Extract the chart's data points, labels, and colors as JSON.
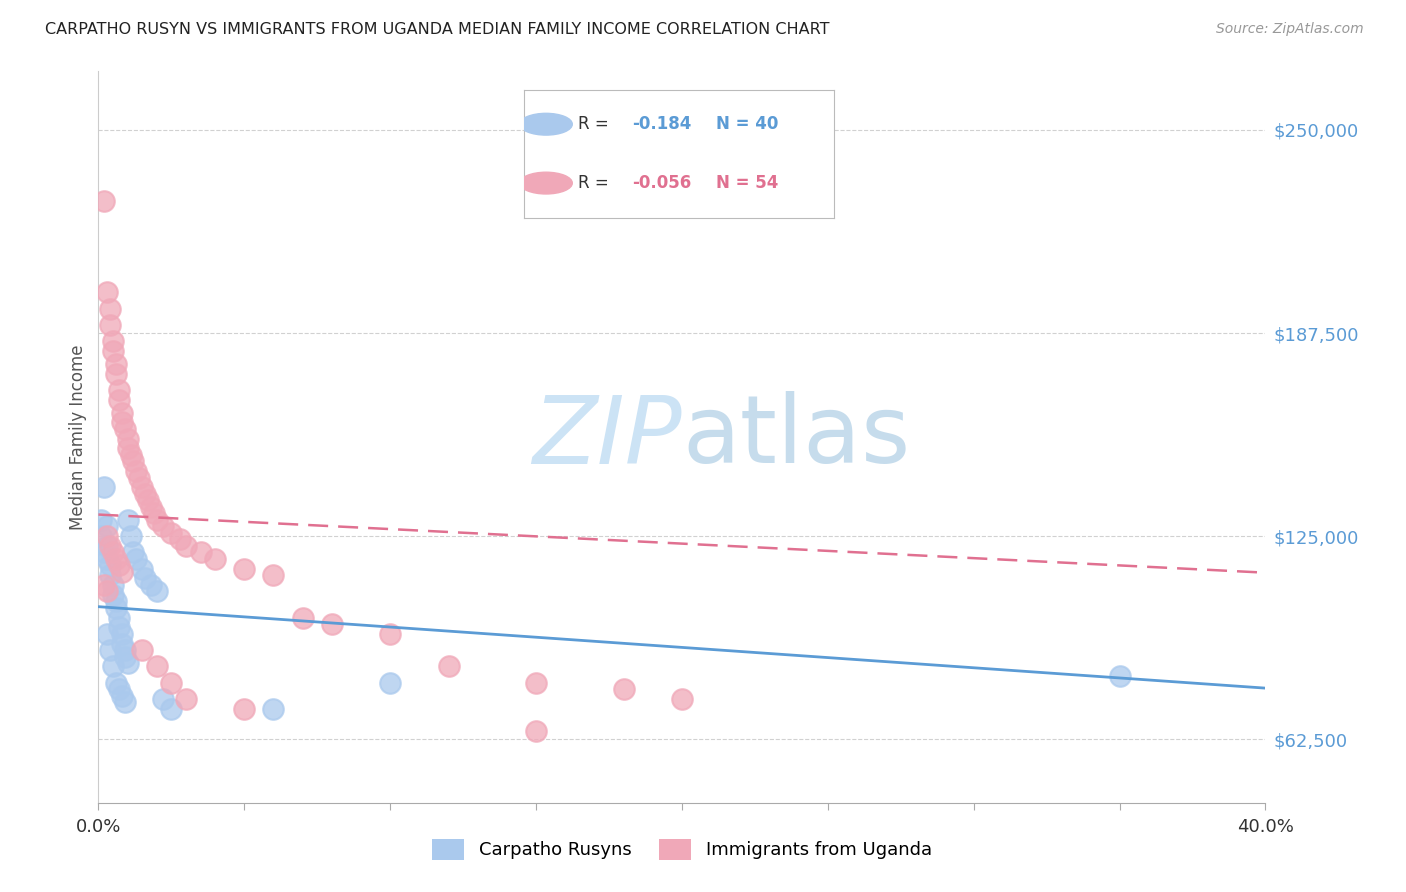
{
  "title": "CARPATHO RUSYN VS IMMIGRANTS FROM UGANDA MEDIAN FAMILY INCOME CORRELATION CHART",
  "source": "Source: ZipAtlas.com",
  "ylabel": "Median Family Income",
  "yticks": [
    62500,
    125000,
    187500,
    250000
  ],
  "ytick_labels": [
    "$62,500",
    "$125,000",
    "$187,500",
    "$250,000"
  ],
  "xmin": 0.0,
  "xmax": 0.4,
  "ymin": 43000,
  "ymax": 268000,
  "legend1_label": "Carpatho Rusyns",
  "legend2_label": "Immigrants from Uganda",
  "r1": -0.184,
  "n1": 40,
  "r2": -0.056,
  "n2": 54,
  "color_blue": "#aac9ed",
  "color_pink": "#f0a8b8",
  "color_blue_line": "#5b9bd5",
  "color_pink_line": "#e07090",
  "watermark_color": "#cce3f5",
  "blue_x": [
    0.001,
    0.001,
    0.002,
    0.002,
    0.003,
    0.003,
    0.003,
    0.004,
    0.004,
    0.005,
    0.005,
    0.006,
    0.006,
    0.007,
    0.007,
    0.008,
    0.008,
    0.009,
    0.009,
    0.01,
    0.01,
    0.011,
    0.012,
    0.013,
    0.015,
    0.016,
    0.018,
    0.02,
    0.022,
    0.025,
    0.003,
    0.004,
    0.005,
    0.006,
    0.007,
    0.008,
    0.009,
    0.06,
    0.1,
    0.35
  ],
  "blue_y": [
    130000,
    125000,
    140000,
    120000,
    128000,
    122000,
    118000,
    116000,
    113000,
    110000,
    107000,
    105000,
    103000,
    100000,
    97000,
    95000,
    92000,
    90000,
    88000,
    86000,
    130000,
    125000,
    120000,
    118000,
    115000,
    112000,
    110000,
    108000,
    75000,
    72000,
    95000,
    90000,
    85000,
    80000,
    78000,
    76000,
    74000,
    72000,
    80000,
    82000
  ],
  "pink_x": [
    0.002,
    0.003,
    0.004,
    0.004,
    0.005,
    0.005,
    0.006,
    0.006,
    0.007,
    0.007,
    0.008,
    0.008,
    0.009,
    0.01,
    0.01,
    0.011,
    0.012,
    0.013,
    0.014,
    0.015,
    0.016,
    0.017,
    0.018,
    0.019,
    0.02,
    0.022,
    0.025,
    0.028,
    0.03,
    0.035,
    0.04,
    0.05,
    0.06,
    0.07,
    0.08,
    0.1,
    0.12,
    0.15,
    0.18,
    0.2,
    0.003,
    0.004,
    0.005,
    0.006,
    0.007,
    0.008,
    0.015,
    0.02,
    0.025,
    0.03,
    0.002,
    0.003,
    0.05,
    0.15
  ],
  "pink_y": [
    228000,
    200000,
    195000,
    190000,
    185000,
    182000,
    178000,
    175000,
    170000,
    167000,
    163000,
    160000,
    158000,
    155000,
    152000,
    150000,
    148000,
    145000,
    143000,
    140000,
    138000,
    136000,
    134000,
    132000,
    130000,
    128000,
    126000,
    124000,
    122000,
    120000,
    118000,
    115000,
    113000,
    100000,
    98000,
    95000,
    85000,
    80000,
    78000,
    75000,
    125000,
    122000,
    120000,
    118000,
    116000,
    114000,
    90000,
    85000,
    80000,
    75000,
    110000,
    108000,
    72000,
    65000
  ]
}
